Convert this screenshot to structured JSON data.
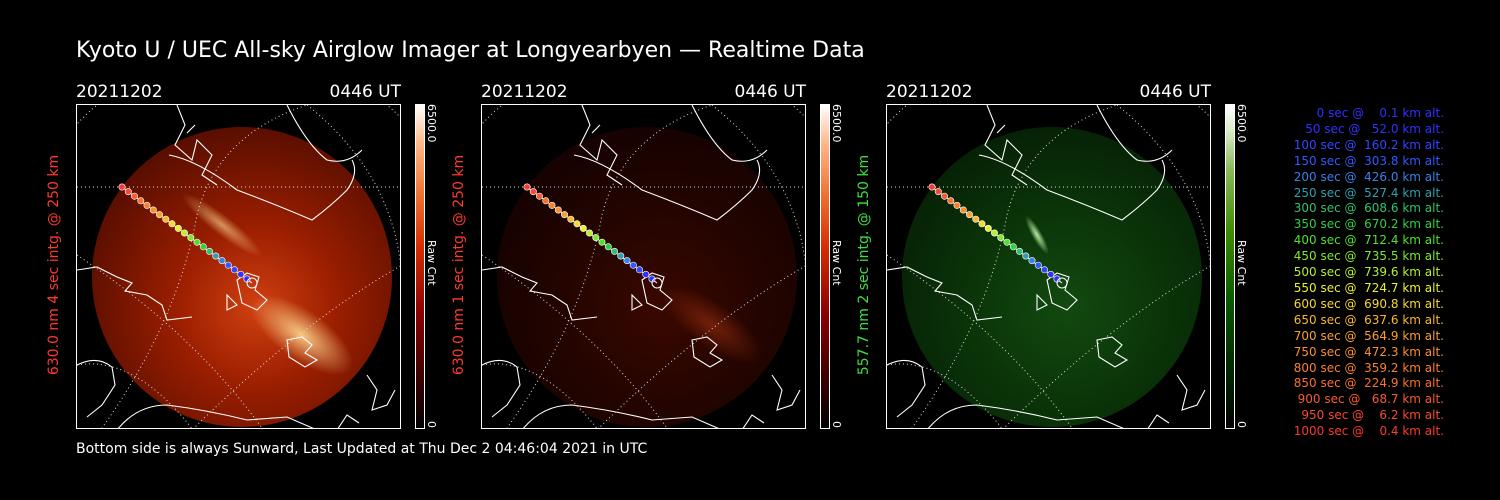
{
  "title": "Kyoto U / UEC All-sky Airglow Imager at Longyearbyen — Realtime Data",
  "footer": "Bottom side is always Sunward, Last Updated at Thu Dec  2 04:46:04 2021 in UTC",
  "panels": [
    {
      "date": "20211202",
      "time": "0446 UT",
      "label": "630.0 nm 4 sec intg. @ 250 km",
      "label_color": "#ff3a2a",
      "cbar_max": "6500.0",
      "cbar_unit": "Raw Cnt",
      "cbar_min": "0",
      "theme": "red"
    },
    {
      "date": "20211202",
      "time": "0446 UT",
      "label": "630.0 nm 1 sec intg. @ 250 km",
      "label_color": "#ff3a2a",
      "cbar_max": "6500.0",
      "cbar_unit": "Raw Cnt",
      "cbar_min": "0",
      "theme": "red"
    },
    {
      "date": "20211202",
      "time": "0446 UT",
      "label": "557.7 nm 2 sec intg. @ 150 km",
      "label_color": "#3ee040",
      "cbar_max": "6500.0",
      "cbar_unit": "Raw Cnt",
      "cbar_min": "0",
      "theme": "green"
    }
  ],
  "legend": [
    {
      "text": "   0 sec @    0.1 km alt.",
      "color": "#3030ff"
    },
    {
      "text": "  50 sec @   52.0 km alt.",
      "color": "#3030ff"
    },
    {
      "text": " 100 sec @  160.2 km alt.",
      "color": "#3046ff"
    },
    {
      "text": " 150 sec @  303.8 km alt.",
      "color": "#305aff"
    },
    {
      "text": " 200 sec @  426.0 km alt.",
      "color": "#3a80e8"
    },
    {
      "text": " 250 sec @  527.4 km alt.",
      "color": "#30a0b0"
    },
    {
      "text": " 300 sec @  608.6 km alt.",
      "color": "#30c070"
    },
    {
      "text": " 350 sec @  670.2 km alt.",
      "color": "#30d040"
    },
    {
      "text": " 400 sec @  712.4 km alt.",
      "color": "#50e030"
    },
    {
      "text": " 450 sec @  735.5 km alt.",
      "color": "#80e830"
    },
    {
      "text": " 500 sec @  739.6 km alt.",
      "color": "#b8f030"
    },
    {
      "text": " 550 sec @  724.7 km alt.",
      "color": "#e8f030"
    },
    {
      "text": " 600 sec @  690.8 km alt.",
      "color": "#f8d830"
    },
    {
      "text": " 650 sec @  637.6 km alt.",
      "color": "#f8b830"
    },
    {
      "text": " 700 sec @  564.9 km alt.",
      "color": "#f8a030"
    },
    {
      "text": " 750 sec @  472.3 km alt.",
      "color": "#f89030"
    },
    {
      "text": " 800 sec @  359.2 km alt.",
      "color": "#f88030"
    },
    {
      "text": " 850 sec @  224.9 km alt.",
      "color": "#f87030"
    },
    {
      "text": " 900 sec @   68.7 km alt.",
      "color": "#f85a30"
    },
    {
      "text": " 950 sec @    6.2 km alt.",
      "color": "#f84a30"
    },
    {
      "text": "1000 sec @    0.4 km alt.",
      "color": "#f83a30"
    }
  ]
}
